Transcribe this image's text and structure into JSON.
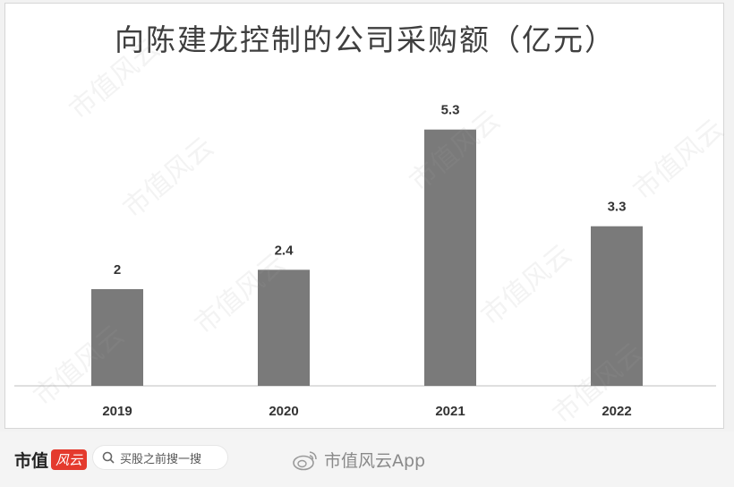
{
  "chart_data": {
    "type": "bar",
    "title": "向陈建龙控制的公司采购额（亿元）",
    "categories": [
      "2019",
      "2020",
      "2021",
      "2022"
    ],
    "values": [
      2,
      2.4,
      5.3,
      3.3
    ],
    "data_labels": [
      "2",
      "2.4",
      "5.3",
      "3.3"
    ],
    "ylim": [
      0,
      5.85
    ],
    "bar_color": "#7a7a7a",
    "grid": false,
    "legend": "none"
  },
  "footer": {
    "brand_name": "市值",
    "brand_badge": "风云",
    "search_placeholder": "买股之前搜一搜",
    "weibo_handle": "市值风云App"
  },
  "watermark_text": "市值风云"
}
